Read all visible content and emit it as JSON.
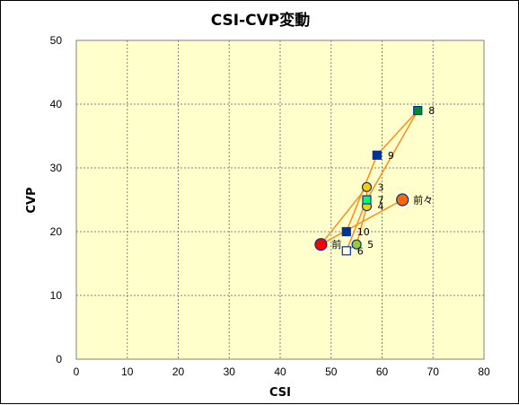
{
  "chart_data": {
    "type": "scatter",
    "title": "CSI-CVP変動",
    "xlabel": "CSI",
    "ylabel": "CVP",
    "xlim": [
      0,
      80
    ],
    "ylim": [
      0,
      50
    ],
    "x_ticks": [
      0,
      10,
      20,
      30,
      40,
      50,
      60,
      70,
      80
    ],
    "y_ticks": [
      0,
      10,
      20,
      30,
      40,
      50
    ],
    "grid": true,
    "colors": {
      "plot_background": "#ffffcc",
      "grid": "#808080",
      "line": "#ff8c1a",
      "marker_border_dark": "#003399"
    },
    "points": [
      {
        "label": "前々",
        "x": 64,
        "y": 25,
        "marker": "circle",
        "fill": "#ff6600",
        "stroke": "#003399"
      },
      {
        "label": "前",
        "x": 48,
        "y": 18,
        "marker": "circle",
        "fill": "#ff0000",
        "stroke": "#003399"
      },
      {
        "label": "3",
        "x": 57,
        "y": 27,
        "marker": "circle",
        "fill": "#ffcc00",
        "stroke": "#003399"
      },
      {
        "label": "4",
        "x": 57,
        "y": 24,
        "marker": "circle",
        "fill": "#ffcc00",
        "stroke": "#003399"
      },
      {
        "label": "5",
        "x": 55,
        "y": 18,
        "marker": "circle",
        "fill": "#99cc33",
        "stroke": "#003399"
      },
      {
        "label": "6",
        "x": 53,
        "y": 17,
        "marker": "square",
        "fill": "#ffffff",
        "stroke": "#003399"
      },
      {
        "label": "7",
        "x": 57,
        "y": 25,
        "marker": "square",
        "fill": "#00ff66",
        "stroke": "#003399"
      },
      {
        "label": "8",
        "x": 67,
        "y": 39,
        "marker": "square",
        "fill": "#008833",
        "stroke": "#003399"
      },
      {
        "label": "9",
        "x": 59,
        "y": 32,
        "marker": "square",
        "fill": "#003399",
        "stroke": "#003399"
      },
      {
        "label": "10",
        "x": 53,
        "y": 20,
        "marker": "square",
        "fill": "#003399",
        "stroke": "#003399"
      }
    ]
  }
}
